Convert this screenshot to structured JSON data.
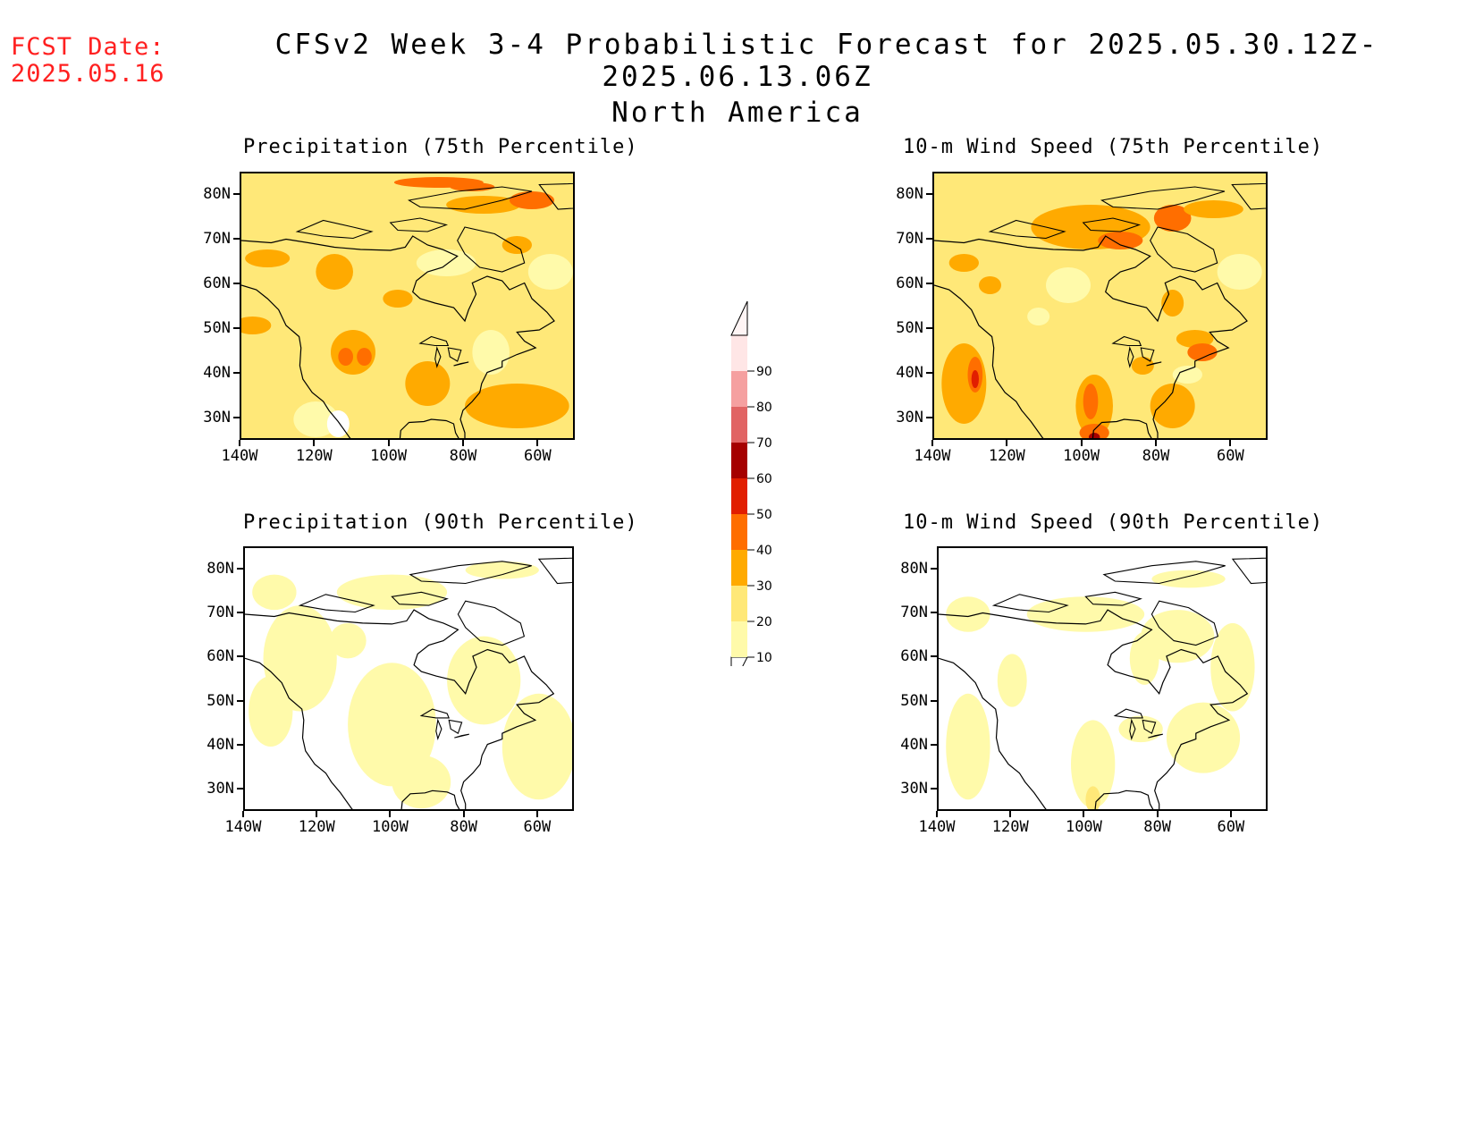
{
  "header": {
    "fcst_label": "FCST Date:",
    "fcst_date": "2025.05.16",
    "title": "CFSv2 Week 3-4 Probabilistic Forecast for 2025.05.30.12Z-2025.06.13.06Z",
    "subtitle": "North America"
  },
  "colors": {
    "c10": "#fffaaa",
    "c20": "#ffe878",
    "c30": "#ffaa00",
    "c40": "#ff6e00",
    "c50": "#e11e00",
    "c60": "#a50000",
    "c70": "#e16464",
    "c80": "#f5a0a0",
    "c90": "#ffe6e6"
  },
  "colorbar": {
    "labels": [
      "10",
      "20",
      "30",
      "40",
      "50",
      "60",
      "70",
      "80",
      "90"
    ]
  },
  "panels": [
    {
      "title": "Precipitation (75th Percentile)",
      "lat_labels": [
        "80N",
        "70N",
        "60N",
        "50N",
        "40N",
        "30N"
      ],
      "lon_labels": [
        "140W",
        "120W",
        "100W",
        "80W",
        "60W"
      ],
      "dominant_category": "20-30%"
    },
    {
      "title": "10-m Wind Speed (75th Percentile)",
      "lat_labels": [
        "80N",
        "70N",
        "60N",
        "50N",
        "40N",
        "30N"
      ],
      "lon_labels": [
        "140W",
        "120W",
        "100W",
        "80W",
        "60W"
      ],
      "dominant_category": "20-30%"
    },
    {
      "title": "Precipitation (90th Percentile)",
      "lat_labels": [
        "80N",
        "70N",
        "60N",
        "50N",
        "40N",
        "30N"
      ],
      "lon_labels": [
        "140W",
        "120W",
        "100W",
        "80W",
        "60W"
      ],
      "dominant_category": "10-20%"
    },
    {
      "title": "10-m Wind Speed (90th Percentile)",
      "lat_labels": [
        "80N",
        "70N",
        "60N",
        "50N",
        "40N",
        "30N"
      ],
      "lon_labels": [
        "140W",
        "120W",
        "100W",
        "80W",
        "60W"
      ],
      "dominant_category": "10-20%"
    }
  ]
}
